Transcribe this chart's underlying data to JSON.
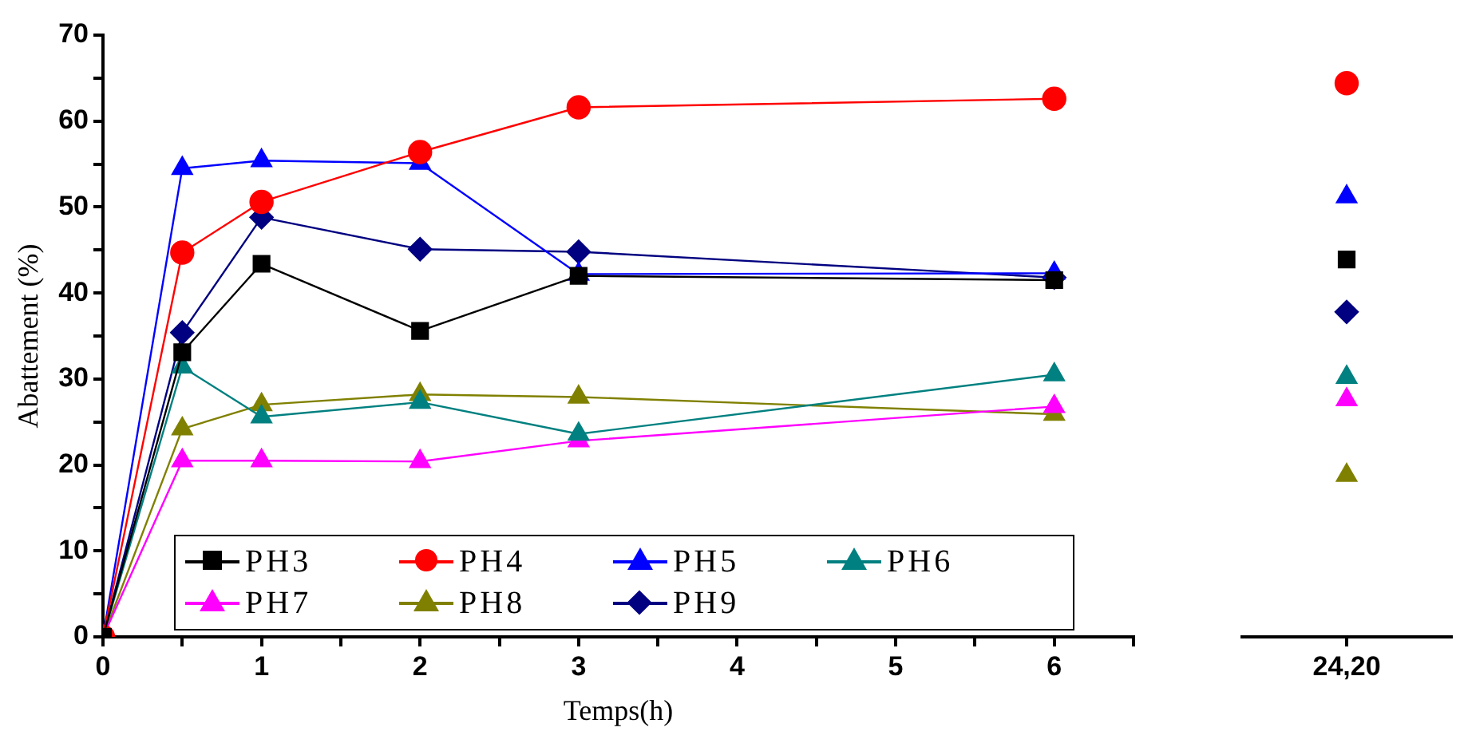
{
  "chart_data": [
    {
      "type": "line",
      "xlabel": "Temps(h)",
      "ylabel": "Abattement (%)",
      "x": [
        0,
        0.5,
        1,
        2,
        3,
        6
      ],
      "xlim": [
        0,
        6.5
      ],
      "xticks": [
        0,
        {
          "value": 0.5,
          "label": null
        },
        1,
        {
          "value": 1.5,
          "label": null
        },
        2,
        {
          "value": 2.5,
          "label": null
        },
        3,
        {
          "value": 3.5,
          "label": null
        },
        4,
        {
          "value": 4.5,
          "label": null
        },
        5,
        {
          "value": 5.5,
          "label": null
        },
        6,
        {
          "value": 6.5,
          "label": null
        }
      ],
      "ylim": [
        0,
        70
      ],
      "yticks": [
        0,
        {
          "value": 5,
          "label": null
        },
        10,
        {
          "value": 15,
          "label": null
        },
        20,
        {
          "value": 25,
          "label": null
        },
        30,
        {
          "value": 35,
          "label": null
        },
        40,
        {
          "value": 45,
          "label": null
        },
        50,
        {
          "value": 55,
          "label": null
        },
        60,
        {
          "value": 65,
          "label": null
        },
        70
      ],
      "grid": false,
      "legend": "bottom",
      "series": [
        {
          "name": "PH3",
          "color": "#000000",
          "marker": "square",
          "values": [
            0,
            33.1,
            43.4,
            35.6,
            42.0,
            41.5
          ]
        },
        {
          "name": "PH4",
          "color": "#ff0000",
          "marker": "circle",
          "values": [
            0,
            44.7,
            50.6,
            56.4,
            61.6,
            62.6
          ]
        },
        {
          "name": "PH5",
          "color": "#0000ff",
          "marker": "triangle",
          "values": [
            0,
            54.5,
            55.4,
            55.1,
            42.2,
            42.3
          ]
        },
        {
          "name": "PH6",
          "color": "#008080",
          "marker": "triangle",
          "values": [
            0,
            31.4,
            25.6,
            27.3,
            23.6,
            30.5
          ]
        },
        {
          "name": "PH7",
          "color": "#ff00ff",
          "marker": "triangle",
          "values": [
            0,
            20.5,
            20.5,
            20.4,
            22.8,
            26.8
          ]
        },
        {
          "name": "PH8",
          "color": "#808000",
          "marker": "triangle",
          "values": [
            0,
            24.2,
            27.0,
            28.2,
            27.9,
            25.9
          ]
        },
        {
          "name": "PH9",
          "color": "#000080",
          "marker": "diamond",
          "values": [
            0,
            35.4,
            48.8,
            45.1,
            44.8,
            41.8
          ]
        }
      ]
    },
    {
      "type": "line",
      "categories": [
        "24,20"
      ],
      "ylim": [
        0,
        70
      ],
      "tick_labels": "x",
      "grid": false,
      "legend": false,
      "series": [
        {
          "color": "#000000",
          "marker": "square",
          "values": [
            43.9
          ]
        },
        {
          "color": "#ff0000",
          "marker": "circle",
          "values": [
            64.4
          ]
        },
        {
          "color": "#0000ff",
          "marker": "triangle",
          "values": [
            51.2
          ]
        },
        {
          "color": "#008080",
          "marker": "triangle",
          "values": [
            30.2
          ]
        },
        {
          "color": "#ff00ff",
          "marker": "triangle",
          "values": [
            27.6
          ]
        },
        {
          "color": "#808000",
          "marker": "triangle",
          "values": [
            18.8
          ]
        },
        {
          "color": "#000080",
          "marker": "diamond",
          "values": [
            37.8
          ]
        }
      ]
    }
  ]
}
